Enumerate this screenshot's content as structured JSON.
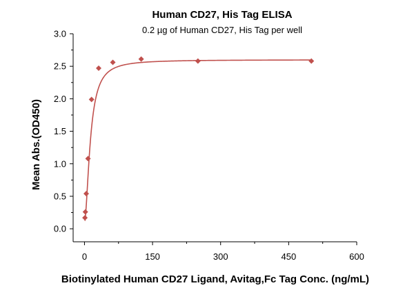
{
  "chart_data": {
    "type": "scatter",
    "title": "Human CD27, His Tag ELISA",
    "subtitle": "0.2 µg of Human CD27, His Tag per well",
    "xlabel": "Biotinylated Human CD27 Ligand, Avitag,Fc Tag Conc. (ng/mL)",
    "ylabel": "Mean Abs.(OD450)",
    "xlim": [
      -25,
      600
    ],
    "ylim": [
      -0.2,
      3.0
    ],
    "x_ticks": [
      0,
      150,
      300,
      450,
      600
    ],
    "x_tick_labels": [
      "0",
      "150",
      "300",
      "450",
      "600"
    ],
    "y_ticks": [
      0.0,
      0.5,
      1.0,
      1.5,
      2.0,
      2.5,
      3.0
    ],
    "y_tick_labels": [
      "0.0",
      "0.5",
      "1.0",
      "1.5",
      "2.0",
      "2.5",
      "3.0"
    ],
    "grid": false,
    "legend": "none",
    "series": [
      {
        "marker": "diamond",
        "color": "#c0504d",
        "x": [
          0.98,
          1.95,
          3.9,
          7.8,
          15.6,
          31.25,
          62.5,
          125,
          250,
          500
        ],
        "y": [
          0.17,
          0.26,
          0.54,
          1.08,
          1.99,
          2.47,
          2.56,
          2.61,
          2.58,
          2.58
        ]
      }
    ],
    "fit_curve": {
      "color": "#c0504d",
      "model": "4PL",
      "bottom": 0.1,
      "top": 2.6,
      "ec50": 13,
      "hill": 1.8
    }
  }
}
